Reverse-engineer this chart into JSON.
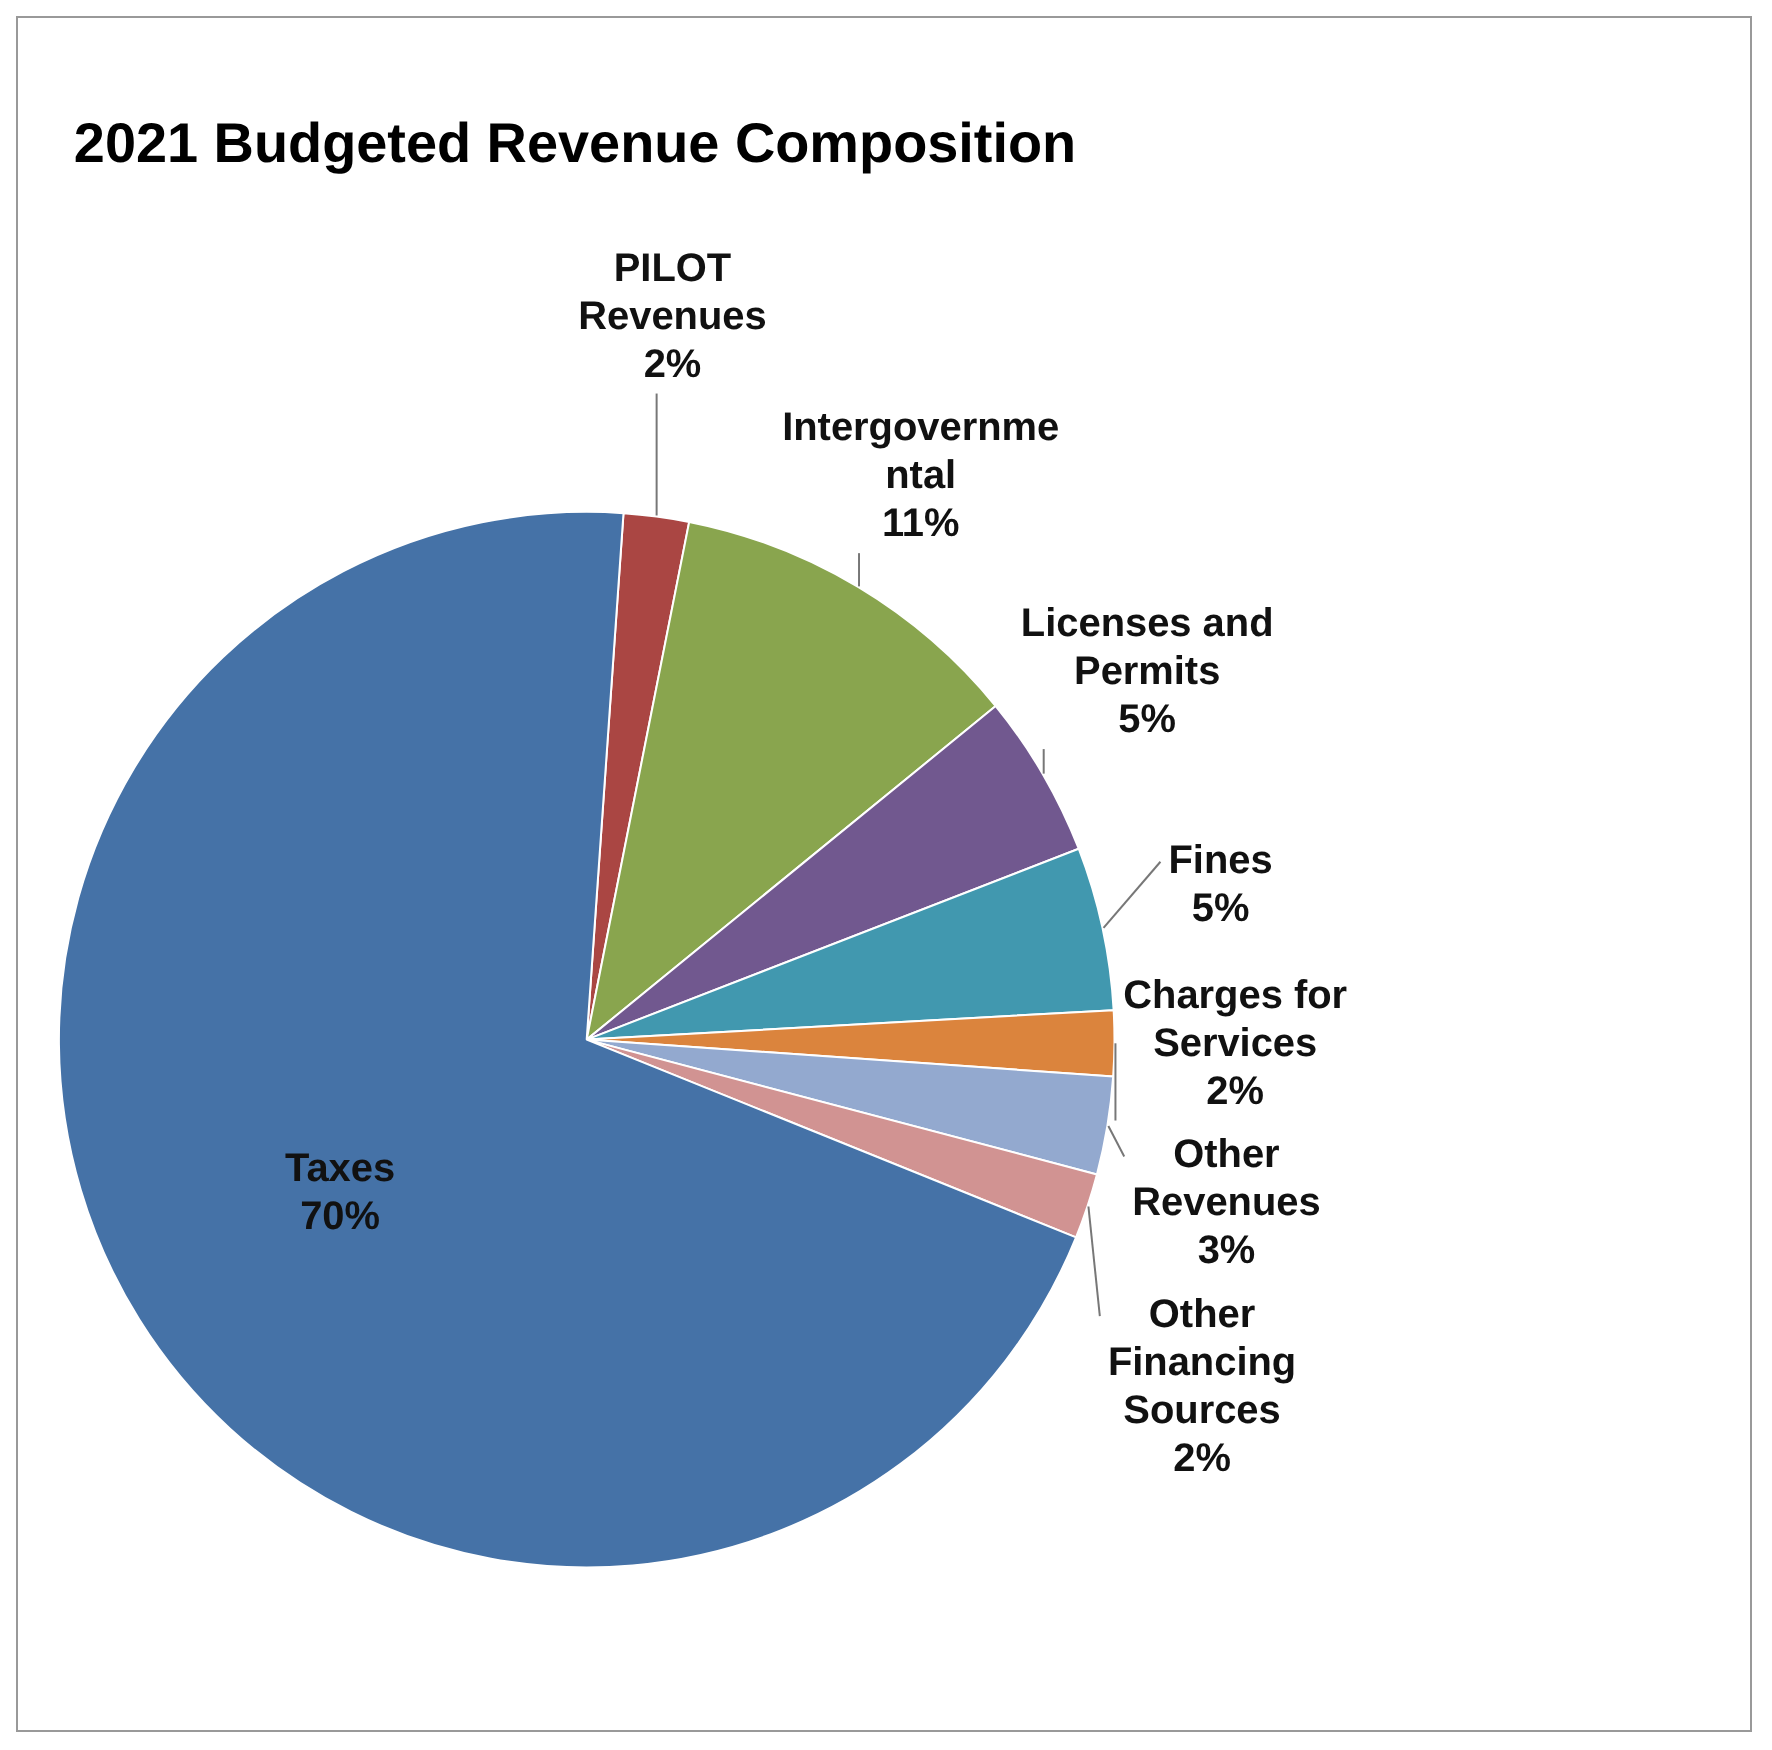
{
  "chart_data": {
    "type": "pie",
    "title": "2021 Budgeted Revenue Composition",
    "categories": [
      "PILOT Revenues",
      "Intergovernmental",
      "Licenses and Permits",
      "Fines",
      "Charges for Services",
      "Other Revenues",
      "Other Financing Sources",
      "Taxes"
    ],
    "values": [
      2,
      11,
      5,
      5,
      2,
      3,
      2,
      70
    ],
    "value_labels": [
      "2%",
      "11%",
      "5%",
      "5%",
      "2%",
      "3%",
      "2%",
      "70%"
    ],
    "colors": [
      "#aa4643",
      "#89a54e",
      "#71588f",
      "#4198af",
      "#db843d",
      "#93a9cf",
      "#d19392",
      "#4572a7"
    ],
    "legend": false
  }
}
